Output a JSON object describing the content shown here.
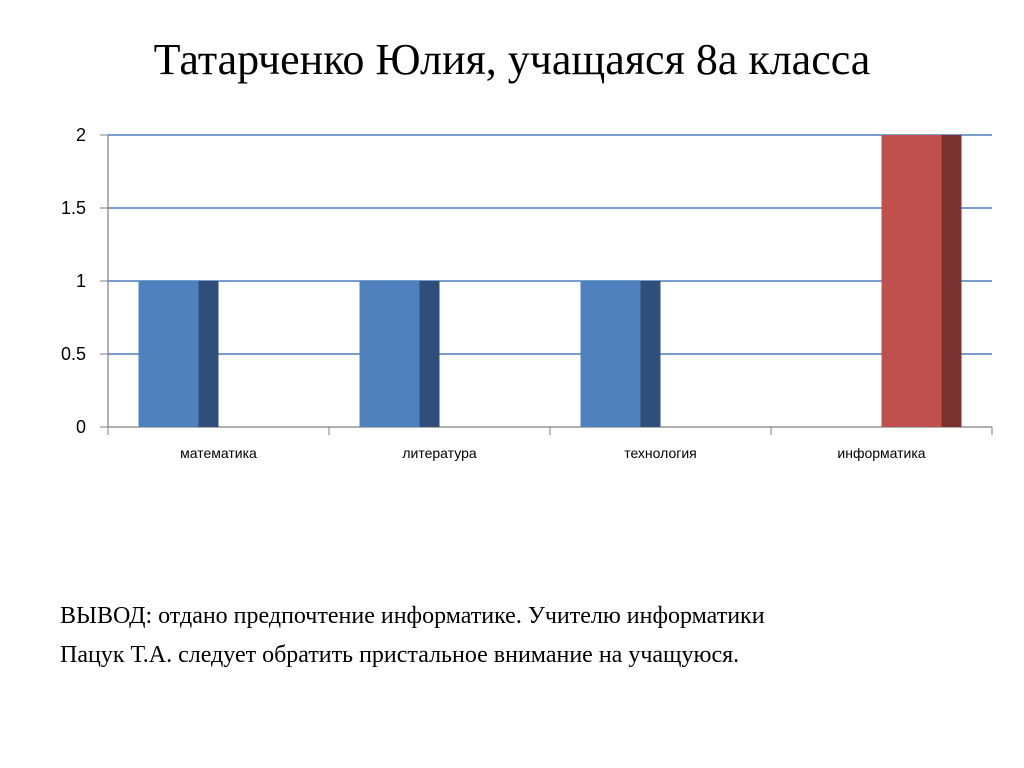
{
  "slide": {
    "title": "Татарченко Юлия, учащаяся 8а  класса",
    "conclusion_lines": [
      "ВЫВОД: отдано предпочтение информатике. Учителю информатики",
      "Пацук Т.А. следует обратить пристальное внимание на учащуюся."
    ]
  },
  "chart_data": {
    "type": "bar",
    "categories": [
      "математика",
      "литература",
      "технология",
      "информатика"
    ],
    "series": [
      {
        "values": [
          1,
          1,
          1,
          null
        ],
        "color": "#4F81BD",
        "shade_color": "#2F4F7A"
      },
      {
        "values": [
          null,
          null,
          null,
          2
        ],
        "color": "#C0504D",
        "shade_color": "#7A3330"
      }
    ],
    "ylim": [
      0,
      2
    ],
    "yticks": [
      "0",
      "0.5",
      "1",
      "1.5",
      "2"
    ],
    "ytick_values": [
      0,
      0.5,
      1,
      1.5,
      2
    ],
    "gridlines": true,
    "gridline_color": "#4A7EBB",
    "legend": "none"
  }
}
